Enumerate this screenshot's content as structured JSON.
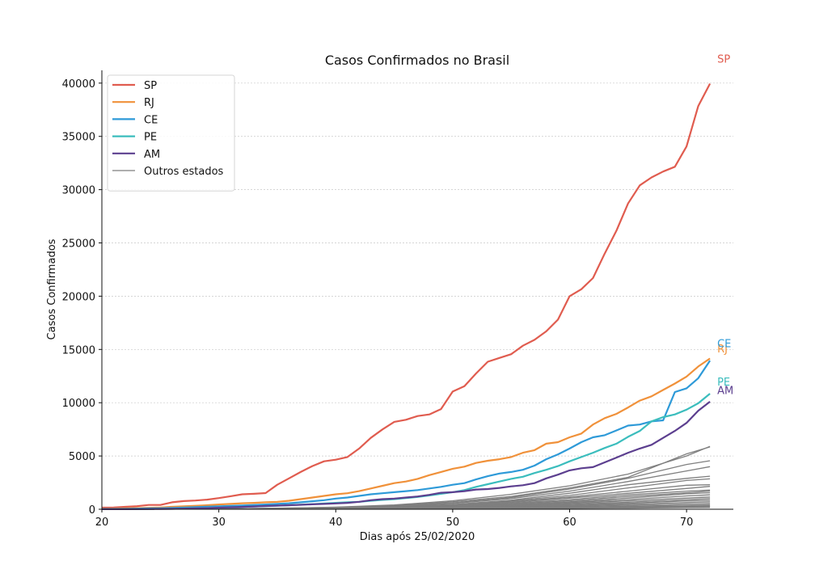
{
  "chart_data": {
    "type": "line",
    "title": "Casos Confirmados no Brasil",
    "xlabel": "Dias após 25/02/2020",
    "ylabel": "Casos Confirmados",
    "xlim": [
      20,
      74
    ],
    "ylim": [
      0,
      41200
    ],
    "xticks": [
      20,
      30,
      40,
      50,
      60,
      70
    ],
    "yticks": [
      0,
      5000,
      10000,
      15000,
      20000,
      25000,
      30000,
      35000,
      40000
    ],
    "grid": "horizontal",
    "legend_position": "top-left",
    "end_labels": [
      "SP",
      "RJ",
      "CE",
      "PE",
      "AM"
    ],
    "series": [
      {
        "name": "SP",
        "color": "#e05c4f",
        "x": [
          20,
          21,
          22,
          23,
          24,
          25,
          26,
          27,
          28,
          29,
          30,
          31,
          32,
          33,
          34,
          35,
          36,
          37,
          38,
          39,
          40,
          41,
          42,
          43,
          44,
          45,
          46,
          47,
          48,
          49,
          50,
          51,
          52,
          53,
          54,
          55,
          56,
          57,
          58,
          59,
          60,
          61,
          62,
          63,
          64,
          65,
          66,
          67,
          68,
          69,
          70,
          71,
          72
        ],
        "y": [
          150,
          160,
          230,
          290,
          400,
          400,
          650,
          770,
          820,
          900,
          1050,
          1220,
          1400,
          1450,
          1520,
          2300,
          2900,
          3500,
          4050,
          4500,
          4650,
          4900,
          5700,
          6700,
          7500,
          8200,
          8400,
          8750,
          8900,
          9400,
          11050,
          11550,
          12750,
          13850,
          14200,
          14550,
          15350,
          15900,
          16700,
          17800,
          20000,
          20650,
          21700,
          24000,
          26150,
          28700,
          30400,
          31150,
          31700,
          32150,
          34050,
          37850,
          39950
        ]
      },
      {
        "name": "RJ",
        "color": "#f0913a",
        "x": [
          20,
          21,
          22,
          23,
          24,
          25,
          26,
          27,
          28,
          29,
          30,
          31,
          32,
          33,
          34,
          35,
          36,
          37,
          38,
          39,
          40,
          41,
          42,
          43,
          44,
          45,
          46,
          47,
          48,
          49,
          50,
          51,
          52,
          53,
          54,
          55,
          56,
          57,
          58,
          59,
          60,
          61,
          62,
          63,
          64,
          65,
          66,
          67,
          68,
          69,
          70,
          71,
          72
        ],
        "y": [
          50,
          60,
          80,
          110,
          140,
          170,
          230,
          280,
          330,
          380,
          450,
          500,
          560,
          600,
          650,
          700,
          800,
          950,
          1100,
          1250,
          1400,
          1500,
          1700,
          1950,
          2200,
          2450,
          2600,
          2850,
          3200,
          3500,
          3800,
          4000,
          4350,
          4550,
          4700,
          4900,
          5300,
          5550,
          6150,
          6300,
          6750,
          7100,
          7950,
          8550,
          8950,
          9550,
          10200,
          10600,
          11200,
          11800,
          12450,
          13400,
          14150
        ]
      },
      {
        "name": "CE",
        "color": "#2e9ad8",
        "x": [
          20,
          21,
          22,
          23,
          24,
          25,
          26,
          27,
          28,
          29,
          30,
          31,
          32,
          33,
          34,
          35,
          36,
          37,
          38,
          39,
          40,
          41,
          42,
          43,
          44,
          45,
          46,
          47,
          48,
          49,
          50,
          51,
          52,
          53,
          54,
          55,
          56,
          57,
          58,
          59,
          60,
          61,
          62,
          63,
          64,
          65,
          66,
          67,
          68,
          69,
          70,
          71,
          72
        ],
        "y": [
          20,
          30,
          40,
          60,
          80,
          100,
          130,
          170,
          200,
          240,
          280,
          320,
          360,
          400,
          450,
          500,
          560,
          650,
          750,
          850,
          1000,
          1100,
          1250,
          1400,
          1500,
          1600,
          1700,
          1800,
          1950,
          2100,
          2300,
          2450,
          2800,
          3100,
          3350,
          3500,
          3700,
          4100,
          4700,
          5150,
          5700,
          6300,
          6750,
          6950,
          7400,
          7850,
          7950,
          8250,
          8350,
          11000,
          11350,
          12300,
          13950
        ]
      },
      {
        "name": "PE",
        "color": "#3bbdbd",
        "x": [
          20,
          21,
          22,
          23,
          24,
          25,
          26,
          27,
          28,
          29,
          30,
          31,
          32,
          33,
          34,
          35,
          36,
          37,
          38,
          39,
          40,
          41,
          42,
          43,
          44,
          45,
          46,
          47,
          48,
          49,
          50,
          51,
          52,
          53,
          54,
          55,
          56,
          57,
          58,
          59,
          60,
          61,
          62,
          63,
          64,
          65,
          66,
          67,
          68,
          69,
          70,
          71,
          72
        ],
        "y": [
          10,
          15,
          20,
          30,
          40,
          50,
          60,
          80,
          100,
          120,
          150,
          180,
          210,
          250,
          290,
          330,
          380,
          430,
          480,
          540,
          600,
          650,
          700,
          800,
          880,
          950,
          1050,
          1150,
          1300,
          1450,
          1600,
          1800,
          2100,
          2350,
          2600,
          2850,
          3050,
          3400,
          3700,
          4050,
          4500,
          4900,
          5300,
          5750,
          6150,
          6800,
          7350,
          8250,
          8650,
          8900,
          9350,
          9950,
          10850
        ]
      },
      {
        "name": "AM",
        "color": "#5c3f8f",
        "x": [
          20,
          21,
          22,
          23,
          24,
          25,
          26,
          27,
          28,
          29,
          30,
          31,
          32,
          33,
          34,
          35,
          36,
          37,
          38,
          39,
          40,
          41,
          42,
          43,
          44,
          45,
          46,
          47,
          48,
          49,
          50,
          51,
          52,
          53,
          54,
          55,
          56,
          57,
          58,
          59,
          60,
          61,
          62,
          63,
          64,
          65,
          66,
          67,
          68,
          69,
          70,
          71,
          72
        ],
        "y": [
          5,
          5,
          10,
          15,
          20,
          30,
          40,
          60,
          80,
          110,
          150,
          180,
          220,
          260,
          300,
          340,
          380,
          420,
          460,
          500,
          550,
          600,
          700,
          850,
          950,
          1000,
          1100,
          1200,
          1350,
          1550,
          1600,
          1700,
          1850,
          1900,
          2000,
          2150,
          2250,
          2450,
          2900,
          3250,
          3650,
          3850,
          3950,
          4400,
          4850,
          5300,
          5700,
          6050,
          6700,
          7350,
          8100,
          9250,
          10100
        ]
      }
    ],
    "others": {
      "name": "Outros estados",
      "color": "#7f7f7f",
      "x": [
        20,
        25,
        30,
        35,
        40,
        45,
        50,
        55,
        60,
        65,
        70,
        72
      ],
      "states": [
        [
          0,
          10,
          40,
          100,
          200,
          400,
          800,
          1400,
          2200,
          3300,
          5000,
          5900
        ],
        [
          0,
          10,
          40,
          90,
          180,
          350,
          700,
          1200,
          2000,
          3000,
          5200,
          5850
        ],
        [
          0,
          5,
          30,
          80,
          150,
          300,
          600,
          1100,
          1900,
          2900,
          4200,
          4550
        ],
        [
          0,
          5,
          30,
          70,
          140,
          280,
          550,
          1000,
          1700,
          2600,
          3600,
          4000
        ],
        [
          0,
          5,
          25,
          60,
          120,
          240,
          450,
          850,
          1500,
          2300,
          2900,
          3100
        ],
        [
          0,
          5,
          25,
          60,
          110,
          220,
          420,
          780,
          1300,
          2000,
          2700,
          2850
        ],
        [
          0,
          5,
          20,
          50,
          100,
          200,
          380,
          700,
          1150,
          1700,
          2250,
          2300
        ],
        [
          0,
          5,
          20,
          50,
          90,
          180,
          340,
          640,
          1050,
          1500,
          1950,
          2150
        ],
        [
          0,
          5,
          20,
          40,
          80,
          160,
          300,
          560,
          900,
          1350,
          1700,
          1800
        ],
        [
          0,
          5,
          15,
          40,
          70,
          140,
          270,
          500,
          800,
          1200,
          1550,
          1700
        ],
        [
          0,
          5,
          15,
          30,
          60,
          120,
          240,
          430,
          700,
          1050,
          1450,
          1550
        ],
        [
          0,
          5,
          15,
          30,
          50,
          110,
          210,
          380,
          620,
          900,
          1250,
          1350
        ],
        [
          0,
          5,
          10,
          25,
          45,
          90,
          180,
          330,
          540,
          780,
          1050,
          1150
        ],
        [
          0,
          5,
          10,
          20,
          40,
          80,
          150,
          280,
          460,
          650,
          900,
          1000
        ],
        [
          0,
          5,
          10,
          20,
          35,
          70,
          130,
          240,
          390,
          560,
          780,
          850
        ],
        [
          0,
          5,
          10,
          15,
          30,
          60,
          110,
          200,
          320,
          460,
          640,
          700
        ],
        [
          0,
          5,
          10,
          15,
          25,
          50,
          90,
          160,
          260,
          370,
          500,
          550
        ],
        [
          0,
          5,
          5,
          10,
          20,
          40,
          70,
          120,
          200,
          280,
          380,
          420
        ],
        [
          0,
          5,
          5,
          10,
          15,
          30,
          50,
          90,
          150,
          210,
          290,
          320
        ],
        [
          0,
          5,
          5,
          10,
          15,
          25,
          40,
          70,
          110,
          160,
          220,
          250
        ],
        [
          0,
          5,
          5,
          5,
          10,
          20,
          30,
          50,
          80,
          110,
          150,
          170
        ]
      ]
    }
  }
}
